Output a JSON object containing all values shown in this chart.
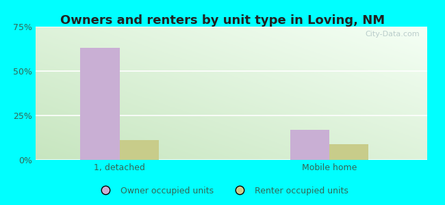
{
  "title": "Owners and renters by unit type in Loving, NM",
  "categories": [
    "1, detached",
    "Mobile home"
  ],
  "owner_values": [
    63,
    17
  ],
  "renter_values": [
    11,
    9
  ],
  "owner_color": "#c9afd4",
  "renter_color": "#c8cc8a",
  "ylim": [
    0,
    75
  ],
  "yticks": [
    0,
    25,
    50,
    75
  ],
  "yticklabels": [
    "0%",
    "25%",
    "50%",
    "75%"
  ],
  "bar_width": 0.28,
  "outer_bg": "#00ffff",
  "plot_bg_left": "#cde8c0",
  "plot_bg_right": "#f0f8f0",
  "watermark": "City-Data.com",
  "legend_labels": [
    "Owner occupied units",
    "Renter occupied units"
  ],
  "text_color": "#336655"
}
